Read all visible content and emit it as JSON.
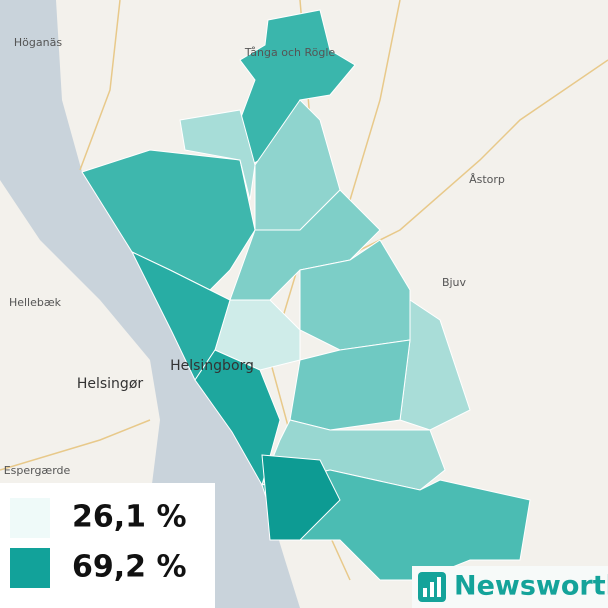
{
  "map": {
    "places": [
      "Höganäs",
      "Tånga och Rögle",
      "Åstorp",
      "Hellebæk",
      "Bjuv",
      "Helsingør",
      "Helsingborg",
      "Espergærde"
    ],
    "legend": [
      {
        "label": "26,1 %",
        "color": "#effaf9"
      },
      {
        "label": "69,2 %",
        "color": "#12a29a"
      }
    ],
    "brand": "Newsworthy"
  }
}
